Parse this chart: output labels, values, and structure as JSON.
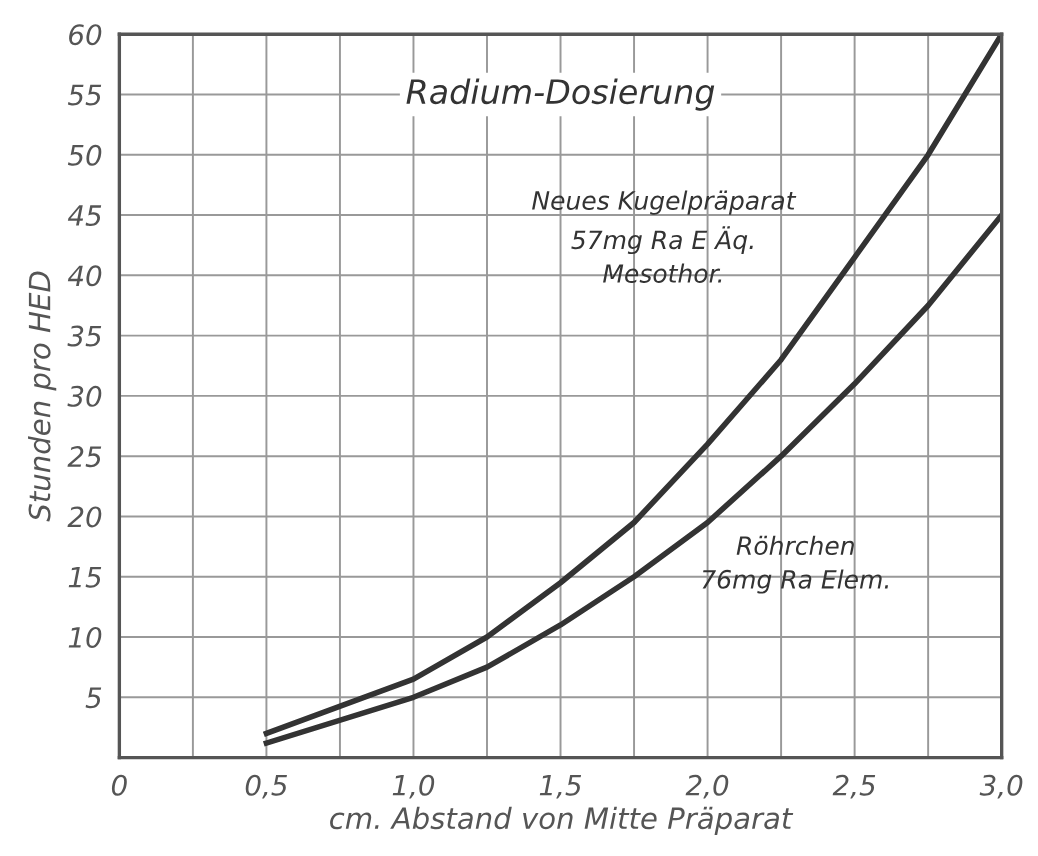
{
  "chart_data": {
    "type": "line",
    "title": "Radium-Dosierung",
    "xlabel": "cm. Abstand von Mitte Präparat",
    "ylabel": "Stunden pro HED",
    "xlim": [
      0,
      3.0
    ],
    "ylim": [
      0,
      60
    ],
    "xticks": [
      0,
      {
        "value": 0.25,
        "label": null
      },
      {
        "value": 0.5,
        "label": "0,5"
      },
      {
        "value": 0.75,
        "label": null
      },
      {
        "value": 1.0,
        "label": "1,0"
      },
      {
        "value": 1.25,
        "label": null
      },
      {
        "value": 1.5,
        "label": "1,5"
      },
      {
        "value": 1.75,
        "label": null
      },
      {
        "value": 2.0,
        "label": "2,0"
      },
      {
        "value": 2.25,
        "label": null
      },
      {
        "value": 2.5,
        "label": "2,5"
      },
      {
        "value": 2.75,
        "label": null
      },
      {
        "value": 3.0,
        "label": "3,0"
      }
    ],
    "yticks": [
      {
        "value": 0,
        "label": null
      },
      5,
      10,
      15,
      20,
      25,
      30,
      35,
      40,
      45,
      50,
      55,
      60
    ],
    "grid": true,
    "marker": "none",
    "line_style": "solid",
    "series": [
      {
        "name": "Neues Kugelpräparat\n57mg Ra E Äq.\nMesothor.",
        "color": "#333333",
        "x": [
          0.5,
          1.0,
          1.25,
          1.5,
          1.75,
          2.0,
          2.25,
          2.5,
          2.75,
          3.0
        ],
        "values": [
          2,
          6.5,
          10,
          14.5,
          19.5,
          26,
          33,
          41.5,
          50,
          60
        ]
      },
      {
        "name": "Röhrchen\n76mg Ra Elem.",
        "color": "#333333",
        "x": [
          0.5,
          1.0,
          1.25,
          1.5,
          1.75,
          2.0,
          2.25,
          2.5,
          2.75,
          3.0
        ],
        "values": [
          1.2,
          5,
          7.5,
          11,
          15,
          19.5,
          25,
          31,
          37.5,
          45
        ]
      }
    ]
  }
}
